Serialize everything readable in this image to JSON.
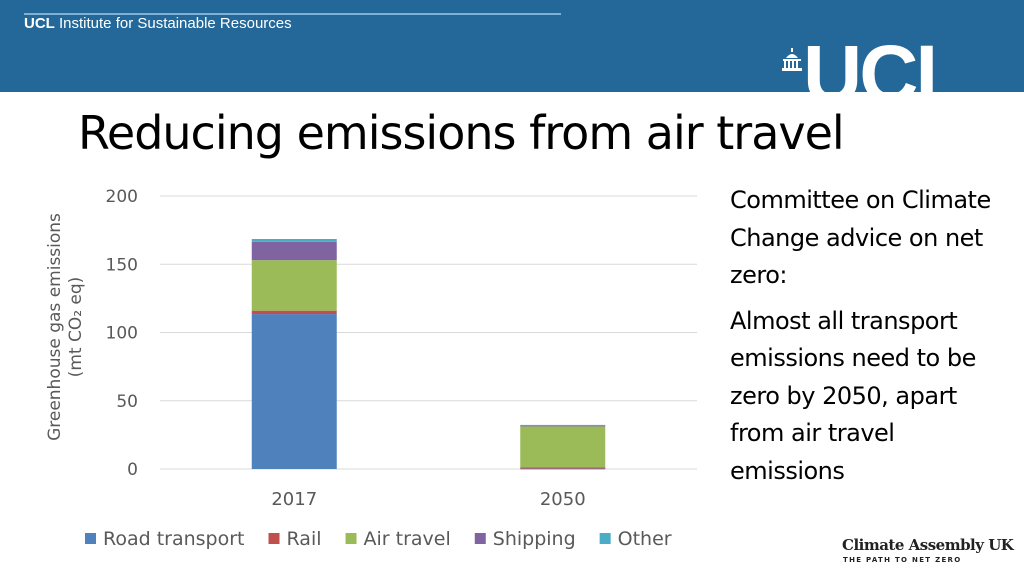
{
  "header": {
    "institute_bold": "UCL",
    "institute_rest": " Institute for Sustainable Resources",
    "logo_text": "UCL"
  },
  "title": "Reducing emissions from air travel",
  "side_text": {
    "p1": "Committee on Climate Change advice on net zero:",
    "p2": "Almost all transport emissions need to be zero by 2050, apart from air travel emissions"
  },
  "footer": {
    "org": "Climate Assembly UK",
    "tagline": "THE PATH TO NET ZERO"
  },
  "chart_data": {
    "type": "bar",
    "stacked": true,
    "title": "",
    "xlabel": "",
    "ylabel_line1": "Greenhouse gas emissions",
    "ylabel_line2": "(mt CO₂ eq)",
    "ylim": [
      0,
      200
    ],
    "yticks": [
      0,
      50,
      100,
      150,
      200
    ],
    "grid": true,
    "legend_position": "bottom",
    "categories": [
      "2017",
      "2050"
    ],
    "series": [
      {
        "name": "Road transport",
        "color": "#4f81bd",
        "values": [
          113.5,
          0.3
        ]
      },
      {
        "name": "Rail",
        "color": "#c0504d",
        "values": [
          2.5,
          1
        ]
      },
      {
        "name": "Air travel",
        "color": "#9bbb59",
        "values": [
          37,
          30
        ]
      },
      {
        "name": "Shipping",
        "color": "#8064a2",
        "values": [
          13.5,
          0.5
        ]
      },
      {
        "name": "Other",
        "color": "#4bacc6",
        "values": [
          2,
          0.5
        ]
      }
    ]
  }
}
